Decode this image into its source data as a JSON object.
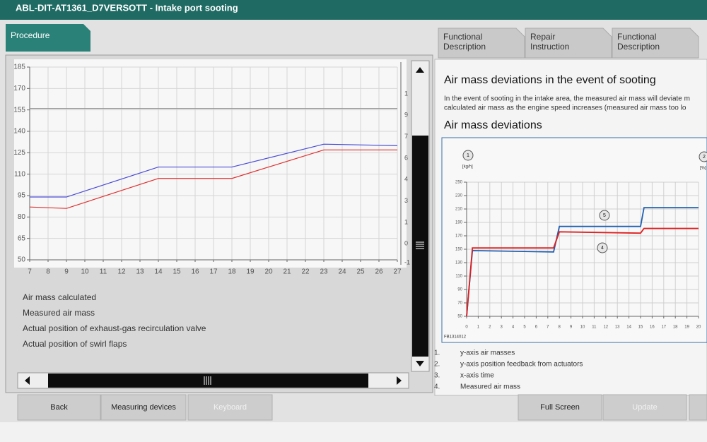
{
  "header": {
    "title": "ABL-DIT-AT1361_D7VERSOTT - Intake port sooting"
  },
  "tabs": {
    "active": "Procedure",
    "others": [
      [
        "Functional",
        "Description"
      ],
      [
        "Repair",
        "Instruction"
      ],
      [
        "Functional",
        "Description"
      ]
    ]
  },
  "chart_data": [
    {
      "type": "line",
      "x": [
        7,
        9,
        14,
        18,
        23,
        27
      ],
      "xlim": [
        7,
        27
      ],
      "xticks": [
        7,
        8,
        9,
        10,
        11,
        12,
        13,
        14,
        15,
        16,
        17,
        18,
        19,
        20,
        21,
        22,
        23,
        24,
        25,
        26,
        27
      ],
      "ylim": [
        50,
        185
      ],
      "yticks": [
        50,
        65,
        80,
        95,
        110,
        125,
        140,
        155,
        170,
        185
      ],
      "y2_labels": [
        "1",
        "9",
        "7",
        "6",
        "4",
        "3",
        "1",
        "0",
        "-1"
      ],
      "grid": true,
      "series": [
        {
          "name": "Air mass calculated",
          "color": "#4a4ad8",
          "values": [
            94,
            94,
            115,
            115,
            131,
            130
          ]
        },
        {
          "name": "Measured air mass",
          "color": "#e03030",
          "values": [
            87,
            86,
            107,
            107,
            127,
            127
          ]
        },
        {
          "name": "Actual position of exhaust-gas recirculation valve",
          "color": "#9a9a9a",
          "values": [
            156,
            156,
            156,
            156,
            156,
            156
          ]
        }
      ],
      "extra_legend": [
        "Actual position of swirl flaps"
      ]
    },
    {
      "type": "line",
      "ylabel": "[kg/h]",
      "y2label": "[%]",
      "x": [
        0,
        0.5,
        7.5,
        8,
        15,
        15.3,
        20
      ],
      "xlim": [
        0,
        20
      ],
      "xticks": [
        0,
        1,
        2,
        3,
        4,
        5,
        6,
        7,
        8,
        9,
        10,
        11,
        12,
        13,
        14,
        15,
        16,
        17,
        18,
        19,
        20
      ],
      "ylim": [
        50,
        250
      ],
      "yticks": [
        50,
        70,
        90,
        110,
        130,
        150,
        170,
        190,
        210,
        230,
        250
      ],
      "grid": true,
      "series": [
        {
          "color": "#1f5fb0",
          "values": [
            50,
            148,
            146,
            184,
            184,
            212,
            212
          ]
        },
        {
          "color": "#e02020",
          "values": [
            50,
            152,
            152,
            176,
            174,
            181,
            181
          ]
        }
      ],
      "annotations": [
        "1",
        "2",
        "5",
        "4"
      ],
      "figure_id": "FB1314012"
    }
  ],
  "right_panel": {
    "heading": "Air mass deviations in the event of sooting",
    "text": [
      "In the event of sooting in the intake area, the measured air mass will deviate m",
      "calculated air mass as the engine speed increases (measured air mass too lo"
    ],
    "subheading": "Air mass deviations",
    "notes": [
      {
        "num": "1.",
        "text": "y-axis air masses"
      },
      {
        "num": "2.",
        "text": "y-axis position feedback from actuators"
      },
      {
        "num": "3.",
        "text": "x-axis time"
      },
      {
        "num": "4.",
        "text": "Measured air mass"
      }
    ]
  },
  "buttons": [
    "Back",
    "Measuring devices",
    "Keyboard",
    "Full Screen",
    "Update"
  ]
}
